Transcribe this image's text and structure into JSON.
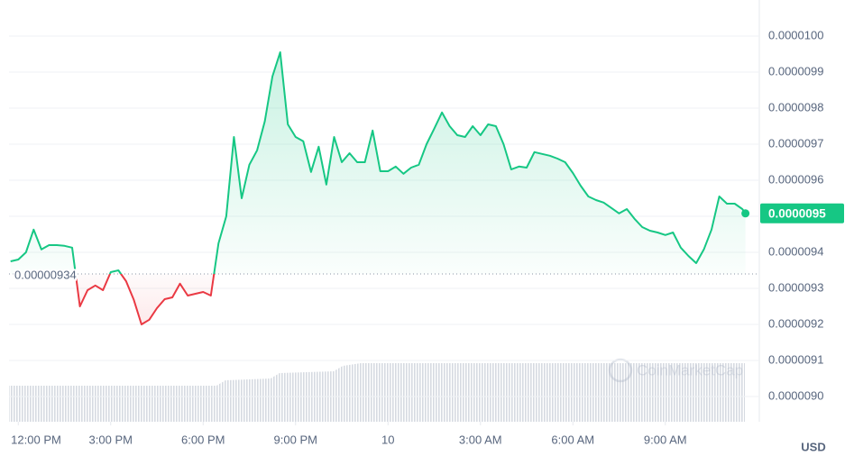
{
  "chart_data": {
    "type": "line",
    "x": [
      -0.25,
      0,
      0.25,
      0.5,
      0.75,
      1,
      1.25,
      1.5,
      1.75,
      2,
      2.25,
      2.5,
      2.75,
      3,
      3.25,
      3.5,
      3.75,
      4,
      4.25,
      4.5,
      4.75,
      5,
      5.25,
      5.5,
      5.75,
      6,
      6.25,
      6.5,
      6.75,
      7,
      7.25,
      7.5,
      7.75,
      8,
      8.25,
      8.5,
      8.75,
      9,
      9.25,
      9.5,
      9.75,
      10,
      10.25,
      10.5,
      10.75,
      11,
      11.25,
      11.5,
      11.75,
      12,
      12.25,
      12.5,
      12.75,
      13,
      13.25,
      13.5,
      13.75,
      14,
      14.25,
      14.5,
      14.75,
      15,
      15.25,
      15.5,
      15.75,
      16,
      16.25,
      16.5,
      16.75,
      17,
      17.25,
      17.5,
      17.75,
      18,
      18.25,
      18.5,
      18.75,
      19,
      19.25,
      19.5,
      19.75,
      20,
      20.25,
      20.5,
      20.75,
      21,
      21.25,
      21.5,
      21.75,
      22,
      22.25,
      22.5,
      22.75,
      23,
      23.25,
      23.5,
      23.6
    ],
    "values": [
      9.375e-06,
      9.38e-06,
      9.4e-06,
      9.463e-06,
      9.408e-06,
      9.42e-06,
      9.42e-06,
      9.418e-06,
      9.413e-06,
      9.25e-06,
      9.295e-06,
      9.308e-06,
      9.295e-06,
      9.345e-06,
      9.35e-06,
      9.32e-06,
      9.268e-06,
      9.2e-06,
      9.213e-06,
      9.245e-06,
      9.27e-06,
      9.275e-06,
      9.313e-06,
      9.28e-06,
      9.285e-06,
      9.29e-06,
      9.28e-06,
      9.425e-06,
      9.5e-06,
      9.72e-06,
      9.55e-06,
      9.643e-06,
      9.683e-06,
      9.763e-06,
      9.888e-06,
      9.955e-06,
      9.755e-06,
      9.72e-06,
      9.708e-06,
      9.623e-06,
      9.693e-06,
      9.588e-06,
      9.72e-06,
      9.65e-06,
      9.675e-06,
      9.65e-06,
      9.65e-06,
      9.738e-06,
      9.625e-06,
      9.625e-06,
      9.638e-06,
      9.618e-06,
      9.635e-06,
      9.643e-06,
      9.7e-06,
      9.743e-06,
      9.788e-06,
      9.75e-06,
      9.725e-06,
      9.72e-06,
      9.75e-06,
      9.725e-06,
      9.755e-06,
      9.75e-06,
      9.7e-06,
      9.63e-06,
      9.638e-06,
      9.635e-06,
      9.678e-06,
      9.673e-06,
      9.668e-06,
      9.66e-06,
      9.65e-06,
      9.62e-06,
      9.585e-06,
      9.555e-06,
      9.545e-06,
      9.538e-06,
      9.523e-06,
      9.508e-06,
      9.52e-06,
      9.493e-06,
      9.47e-06,
      9.46e-06,
      9.455e-06,
      9.448e-06,
      9.455e-06,
      9.413e-06,
      9.39e-06,
      9.37e-06,
      9.408e-06,
      9.463e-06,
      9.555e-06,
      9.535e-06,
      9.535e-06,
      9.52e-06,
      9.508e-06
    ],
    "up_color": "#16c784",
    "down_color": "#ea3943",
    "baseline": {
      "value": 9.34e-06,
      "label": "0.00000934"
    },
    "last_price_label": "0.0000095",
    "xlim": [
      -0.3,
      24.05
    ],
    "xticks": [
      {
        "value": 0,
        "label": "12:00 PM"
      },
      {
        "value": 3,
        "label": "3:00 PM"
      },
      {
        "value": 6,
        "label": "6:00 PM"
      },
      {
        "value": 9,
        "label": "9:00 PM"
      },
      {
        "value": 12,
        "label": "10"
      },
      {
        "value": 15,
        "label": "3:00 AM"
      },
      {
        "value": 18,
        "label": "6:00 AM"
      },
      {
        "value": 21,
        "label": "9:00 AM"
      }
    ],
    "ylim": [
      8.93e-06,
      1.008e-05
    ],
    "yticks": [
      {
        "value": 9e-06,
        "label": "0.0000090"
      },
      {
        "value": 9.1e-06,
        "label": "0.0000091"
      },
      {
        "value": 9.2e-06,
        "label": "0.0000092"
      },
      {
        "value": 9.3e-06,
        "label": "0.0000093"
      },
      {
        "value": 9.4e-06,
        "label": "0.0000094"
      },
      {
        "value": 9.5e-06,
        "label": "0.0000095"
      },
      {
        "value": 9.6e-06,
        "label": "0.0000096"
      },
      {
        "value": 9.7e-06,
        "label": "0.0000097"
      },
      {
        "value": 9.8e-06,
        "label": "0.0000098"
      },
      {
        "value": 9.9e-06,
        "label": "0.0000099"
      },
      {
        "value": 1e-05,
        "label": "0.0000100"
      }
    ],
    "grid": true,
    "currency": "USD",
    "watermark": "CoinMarketCap"
  }
}
